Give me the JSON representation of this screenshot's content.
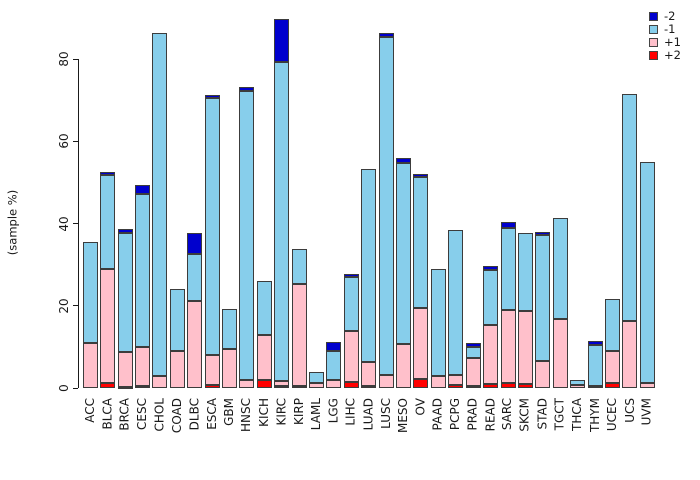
{
  "chart_data": {
    "type": "bar",
    "stacked": true,
    "title": "",
    "xlabel": "",
    "ylabel": "(sample %)",
    "ylim": [
      0,
      90
    ],
    "yticks": [
      0,
      20,
      40,
      60,
      80
    ],
    "grid": false,
    "legend_position": "top-right",
    "background": "#ffffff",
    "stack_order_bottom_to_top": [
      "+2",
      "+1",
      "-1",
      "-2"
    ],
    "categories": [
      "ACC",
      "BLCA",
      "BRCA",
      "CESC",
      "CHOL",
      "COAD",
      "DLBC",
      "ESCA",
      "GBM",
      "HNSC",
      "KICH",
      "KIRC",
      "KIRP",
      "LAML",
      "LGG",
      "LIHC",
      "LUAD",
      "LUSC",
      "MESO",
      "OV",
      "PAAD",
      "PCPG",
      "PRAD",
      "READ",
      "SARC",
      "SKCM",
      "STAD",
      "TGCT",
      "THCA",
      "THYM",
      "UCEC",
      "UCS",
      "UVM"
    ],
    "series": [
      {
        "name": "-2",
        "color": "#0000CD",
        "values": [
          0,
          0.8,
          0.8,
          2.2,
          0,
          0,
          4.9,
          0.8,
          0,
          1.0,
          0,
          10.6,
          0,
          0,
          2.1,
          0.7,
          0,
          1.0,
          1.2,
          0.8,
          0,
          0,
          1.0,
          1.0,
          1.4,
          0,
          0.8,
          0,
          0,
          1.0,
          0,
          0,
          0
        ]
      },
      {
        "name": "-1",
        "color": "#87CEEB",
        "values": [
          24.5,
          22.8,
          29.0,
          37.2,
          83.4,
          15.0,
          11.5,
          62.4,
          9.7,
          70.3,
          13.2,
          77.6,
          8.6,
          2.7,
          7.2,
          13.2,
          47.0,
          82.2,
          44.0,
          31.7,
          26.0,
          35.2,
          2.8,
          13.2,
          20.0,
          19.1,
          30.7,
          24.6,
          1.2,
          9.8,
          12.7,
          55.2,
          53.7
        ]
      },
      {
        "name": "+1",
        "color": "#FFC0CB",
        "values": [
          11.0,
          27.8,
          8.5,
          9.6,
          2.9,
          9.0,
          21.2,
          7.3,
          9.4,
          1.9,
          10.9,
          1.2,
          24.9,
          1.2,
          1.9,
          12.4,
          5.9,
          3.2,
          10.8,
          17.3,
          2.9,
          2.4,
          6.6,
          14.5,
          17.9,
          17.7,
          6.5,
          16.7,
          0.8,
          0.6,
          7.9,
          16.3,
          1.3
        ]
      },
      {
        "name": "+2",
        "color": "#FF0000",
        "values": [
          0,
          1.1,
          0.3,
          0.4,
          0,
          0,
          0,
          0.7,
          0,
          0,
          2.0,
          0.4,
          0.4,
          0,
          0,
          1.5,
          0.4,
          0,
          0,
          2.2,
          0,
          0.7,
          0.6,
          0.9,
          1.1,
          1.0,
          0,
          0,
          0,
          0,
          1.1,
          0,
          0
        ]
      }
    ],
    "legend": [
      {
        "label": "-2",
        "color": "#0000CD"
      },
      {
        "label": "-1",
        "color": "#87CEEB"
      },
      {
        "label": "+1",
        "color": "#FFC0CB"
      },
      {
        "label": "+2",
        "color": "#FF0000"
      }
    ]
  }
}
